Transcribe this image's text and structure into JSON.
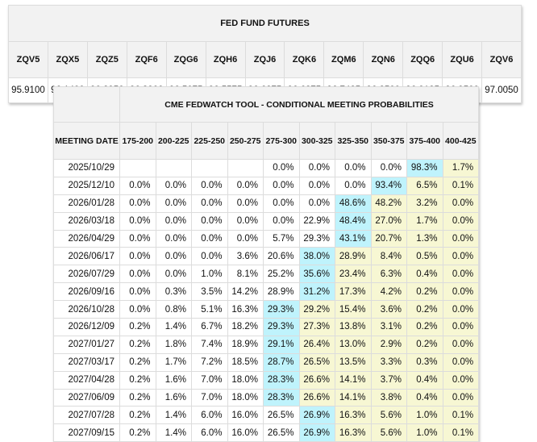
{
  "futures": {
    "title": "FED FUND FUTURES",
    "codes": [
      "ZQV5",
      "ZQX5",
      "ZQZ5",
      "ZQF6",
      "ZQG6",
      "ZQH6",
      "ZQJ6",
      "ZQK6",
      "ZQM6",
      "ZQN6",
      "ZQQ6",
      "ZQU6",
      "ZQV6"
    ],
    "prices": [
      "95.9100",
      "96.1400",
      "96.2950",
      "96.3900",
      "96.5075",
      "96.5575",
      "96.6275",
      "96.6875",
      "96.7425",
      "96.8500",
      "96.9125",
      "96.9500",
      "97.0050"
    ]
  },
  "probabilities": {
    "title": "CME FEDWATCH TOOL - CONDITIONAL MEETING PROBABILITIES",
    "date_header": "MEETING DATE",
    "buckets": [
      "175-200",
      "200-225",
      "225-250",
      "250-275",
      "275-300",
      "300-325",
      "325-350",
      "350-375",
      "375-400",
      "400-425"
    ],
    "colors": {
      "highlight": "#bff3fc",
      "above": "#f7f7d3"
    },
    "rows": [
      {
        "date": "2025/10/29",
        "values": [
          "",
          "",
          "",
          "",
          "0.0%",
          "0.0%",
          "0.0%",
          "0.0%",
          "98.3%",
          "1.7%"
        ],
        "highlight": "375-400"
      },
      {
        "date": "2025/12/10",
        "values": [
          "0.0%",
          "0.0%",
          "0.0%",
          "0.0%",
          "0.0%",
          "0.0%",
          "0.0%",
          "93.4%",
          "6.5%",
          "0.1%"
        ],
        "highlight": "350-375"
      },
      {
        "date": "2026/01/28",
        "values": [
          "0.0%",
          "0.0%",
          "0.0%",
          "0.0%",
          "0.0%",
          "0.0%",
          "48.6%",
          "48.2%",
          "3.2%",
          "0.0%"
        ],
        "highlight": "325-350"
      },
      {
        "date": "2026/03/18",
        "values": [
          "0.0%",
          "0.0%",
          "0.0%",
          "0.0%",
          "0.0%",
          "22.9%",
          "48.4%",
          "27.0%",
          "1.7%",
          "0.0%"
        ],
        "highlight": "325-350"
      },
      {
        "date": "2026/04/29",
        "values": [
          "0.0%",
          "0.0%",
          "0.0%",
          "0.0%",
          "5.7%",
          "29.3%",
          "43.1%",
          "20.7%",
          "1.3%",
          "0.0%"
        ],
        "highlight": "325-350"
      },
      {
        "date": "2026/06/17",
        "values": [
          "0.0%",
          "0.0%",
          "0.0%",
          "3.6%",
          "20.6%",
          "38.0%",
          "28.9%",
          "8.4%",
          "0.5%",
          "0.0%"
        ],
        "highlight": "300-325"
      },
      {
        "date": "2026/07/29",
        "values": [
          "0.0%",
          "0.0%",
          "1.0%",
          "8.1%",
          "25.2%",
          "35.6%",
          "23.4%",
          "6.3%",
          "0.4%",
          "0.0%"
        ],
        "highlight": "300-325"
      },
      {
        "date": "2026/09/16",
        "values": [
          "0.0%",
          "0.3%",
          "3.5%",
          "14.2%",
          "28.9%",
          "31.2%",
          "17.3%",
          "4.2%",
          "0.2%",
          "0.0%"
        ],
        "highlight": "300-325"
      },
      {
        "date": "2026/10/28",
        "values": [
          "0.0%",
          "0.8%",
          "5.1%",
          "16.3%",
          "29.3%",
          "29.2%",
          "15.4%",
          "3.6%",
          "0.2%",
          "0.0%"
        ],
        "highlight": "275-300"
      },
      {
        "date": "2026/12/09",
        "values": [
          "0.2%",
          "1.4%",
          "6.7%",
          "18.2%",
          "29.3%",
          "27.3%",
          "13.8%",
          "3.1%",
          "0.2%",
          "0.0%"
        ],
        "highlight": "275-300"
      },
      {
        "date": "2027/01/27",
        "values": [
          "0.2%",
          "1.8%",
          "7.4%",
          "18.9%",
          "29.1%",
          "26.4%",
          "13.0%",
          "2.9%",
          "0.2%",
          "0.0%"
        ],
        "highlight": "275-300"
      },
      {
        "date": "2027/03/17",
        "values": [
          "0.2%",
          "1.7%",
          "7.2%",
          "18.5%",
          "28.7%",
          "26.5%",
          "13.5%",
          "3.3%",
          "0.3%",
          "0.0%"
        ],
        "highlight": "275-300"
      },
      {
        "date": "2027/04/28",
        "values": [
          "0.2%",
          "1.6%",
          "7.0%",
          "18.0%",
          "28.3%",
          "26.6%",
          "14.1%",
          "3.7%",
          "0.4%",
          "0.0%"
        ],
        "highlight": "275-300"
      },
      {
        "date": "2027/06/09",
        "values": [
          "0.2%",
          "1.6%",
          "7.0%",
          "18.0%",
          "28.3%",
          "26.6%",
          "14.1%",
          "3.8%",
          "0.4%",
          "0.0%"
        ],
        "highlight": "275-300"
      },
      {
        "date": "2027/07/28",
        "values": [
          "0.2%",
          "1.4%",
          "6.0%",
          "16.0%",
          "26.5%",
          "26.9%",
          "16.3%",
          "5.6%",
          "1.0%",
          "0.1%"
        ],
        "highlight": "300-325"
      },
      {
        "date": "2027/09/15",
        "values": [
          "0.2%",
          "1.4%",
          "6.0%",
          "16.0%",
          "26.5%",
          "26.9%",
          "16.3%",
          "5.6%",
          "1.0%",
          "0.1%"
        ],
        "highlight": "300-325"
      }
    ]
  }
}
